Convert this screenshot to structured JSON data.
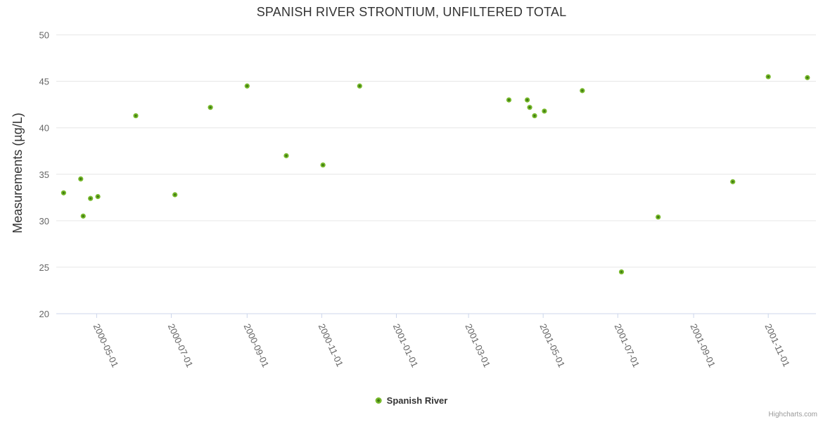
{
  "chart_data": {
    "type": "scatter",
    "title": "SPANISH RIVER STRONTIUM, UNFILTERED TOTAL",
    "xlabel": "",
    "ylabel": "Measurements (µg/L)",
    "x_type": "date",
    "xlim": [
      "2000-03-29",
      "2001-12-10"
    ],
    "ylim": [
      20,
      50
    ],
    "y_ticks": [
      20,
      25,
      30,
      35,
      40,
      45,
      50
    ],
    "x_ticks": [
      "2000-05-01",
      "2000-07-01",
      "2000-09-01",
      "2000-11-01",
      "2001-01-01",
      "2001-03-01",
      "2001-05-01",
      "2001-07-01",
      "2001-09-01",
      "2001-11-01"
    ],
    "x_tick_rotation": -65,
    "grid": true,
    "legend_position": "bottom-center",
    "series": [
      {
        "name": "Spanish River",
        "color": "#76b82a",
        "points": [
          [
            "2000-04-04",
            33.0
          ],
          [
            "2000-04-18",
            34.5
          ],
          [
            "2000-04-20",
            30.5
          ],
          [
            "2000-04-26",
            32.4
          ],
          [
            "2000-05-02",
            32.6
          ],
          [
            "2000-06-02",
            41.3
          ],
          [
            "2000-07-04",
            32.8
          ],
          [
            "2000-08-02",
            42.2
          ],
          [
            "2000-09-01",
            44.5
          ],
          [
            "2000-10-03",
            37.0
          ],
          [
            "2000-11-02",
            36.0
          ],
          [
            "2000-12-02",
            44.5
          ],
          [
            "2001-04-03",
            43.0
          ],
          [
            "2001-04-18",
            43.0
          ],
          [
            "2001-04-20",
            42.2
          ],
          [
            "2001-04-24",
            41.3
          ],
          [
            "2001-05-02",
            41.8
          ],
          [
            "2001-06-02",
            44.0
          ],
          [
            "2001-07-04",
            24.5
          ],
          [
            "2001-08-03",
            30.4
          ],
          [
            "2001-10-03",
            34.2
          ],
          [
            "2001-11-01",
            45.5
          ],
          [
            "2001-12-03",
            45.4
          ]
        ]
      }
    ],
    "credits": "Highcharts.com"
  },
  "colors": {
    "marker": "#76b82a",
    "marker_center": "#3e7a12",
    "grid": "#e6e6e6",
    "axis_line": "#ccd6eb",
    "tick_label": "#666666",
    "title": "#333333",
    "legend_text": "#333333",
    "credits": "#999999"
  }
}
